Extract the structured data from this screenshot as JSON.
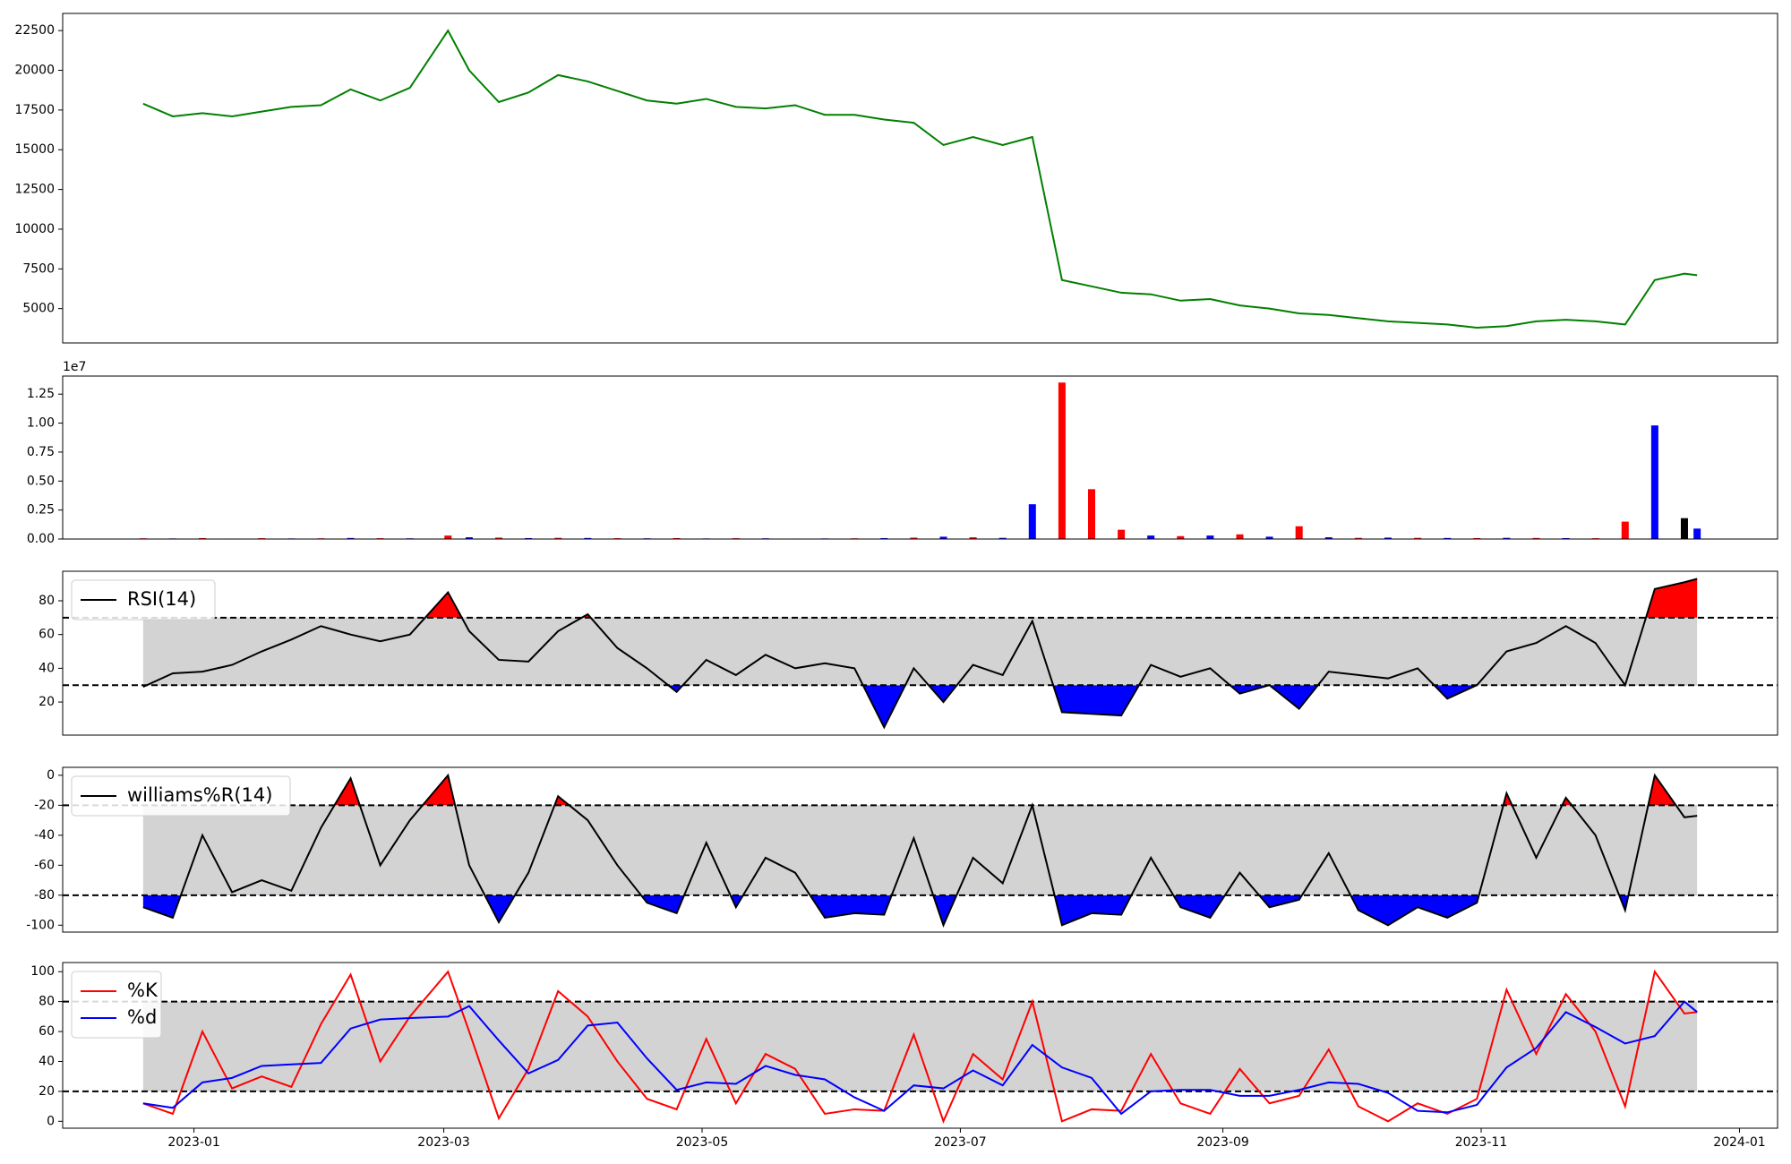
{
  "chart_data": [
    {
      "type": "line",
      "color": "#008000",
      "x": [
        "2022-12-20",
        "2022-12-27",
        "2023-01-03",
        "2023-01-10",
        "2023-01-17",
        "2023-01-24",
        "2023-01-31",
        "2023-02-07",
        "2023-02-14",
        "2023-02-21",
        "2023-03-02",
        "2023-03-07",
        "2023-03-14",
        "2023-03-21",
        "2023-03-28",
        "2023-04-04",
        "2023-04-11",
        "2023-04-18",
        "2023-04-25",
        "2023-05-02",
        "2023-05-09",
        "2023-05-16",
        "2023-05-23",
        "2023-05-30",
        "2023-06-06",
        "2023-06-13",
        "2023-06-20",
        "2023-06-27",
        "2023-07-04",
        "2023-07-11",
        "2023-07-18",
        "2023-07-25",
        "2023-08-01",
        "2023-08-08",
        "2023-08-15",
        "2023-08-22",
        "2023-08-29",
        "2023-09-05",
        "2023-09-12",
        "2023-09-19",
        "2023-09-26",
        "2023-10-03",
        "2023-10-10",
        "2023-10-17",
        "2023-10-24",
        "2023-10-31",
        "2023-11-07",
        "2023-11-14",
        "2023-11-21",
        "2023-11-28",
        "2023-12-05",
        "2023-12-12",
        "2023-12-19",
        "2023-12-22"
      ],
      "values": [
        17900,
        17100,
        17300,
        17100,
        17400,
        17700,
        17800,
        18800,
        18100,
        18900,
        22500,
        20000,
        18000,
        18600,
        19700,
        19300,
        18700,
        18100,
        17900,
        18200,
        17700,
        17600,
        17800,
        17200,
        17200,
        16900,
        16700,
        15300,
        15800,
        15300,
        15800,
        6800,
        6400,
        6000,
        5900,
        5500,
        5600,
        5200,
        5000,
        4700,
        4600,
        4400,
        4200,
        4100,
        4000,
        3800,
        3900,
        4200,
        4300,
        4200,
        4000,
        6800,
        7200,
        7100
      ],
      "xlim": [
        "2022-12-01",
        "2024-01-10"
      ],
      "ylim": [
        2840,
        23580
      ],
      "yticks": [
        5000,
        7500,
        10000,
        12500,
        15000,
        17500,
        20000,
        22500
      ]
    },
    {
      "type": "bar",
      "offset_label": "1e7",
      "x": [
        "2022-12-20",
        "2022-12-27",
        "2023-01-03",
        "2023-01-10",
        "2023-01-17",
        "2023-01-24",
        "2023-01-31",
        "2023-02-07",
        "2023-02-14",
        "2023-02-21",
        "2023-03-02",
        "2023-03-07",
        "2023-03-14",
        "2023-03-21",
        "2023-03-28",
        "2023-04-04",
        "2023-04-11",
        "2023-04-18",
        "2023-04-25",
        "2023-05-02",
        "2023-05-09",
        "2023-05-16",
        "2023-05-23",
        "2023-05-30",
        "2023-06-06",
        "2023-06-13",
        "2023-06-20",
        "2023-06-27",
        "2023-07-04",
        "2023-07-11",
        "2023-07-18",
        "2023-07-25",
        "2023-08-01",
        "2023-08-08",
        "2023-08-15",
        "2023-08-22",
        "2023-08-29",
        "2023-09-05",
        "2023-09-12",
        "2023-09-19",
        "2023-09-26",
        "2023-10-03",
        "2023-10-10",
        "2023-10-17",
        "2023-10-24",
        "2023-10-31",
        "2023-11-07",
        "2023-11-14",
        "2023-11-21",
        "2023-11-28",
        "2023-12-05",
        "2023-12-12",
        "2023-12-19",
        "2023-12-22"
      ],
      "values": [
        60000,
        50000,
        80000,
        40000,
        70000,
        50000,
        60000,
        90000,
        70000,
        60000,
        300000,
        150000,
        120000,
        80000,
        100000,
        90000,
        70000,
        60000,
        80000,
        50000,
        70000,
        60000,
        40000,
        50000,
        60000,
        80000,
        120000,
        200000,
        150000,
        100000,
        3000000,
        13500000,
        4300000,
        800000,
        300000,
        250000,
        300000,
        400000,
        200000,
        1100000,
        150000,
        100000,
        120000,
        100000,
        90000,
        80000,
        100000,
        90000,
        80000,
        70000,
        1500000,
        9800000,
        1800000,
        900000
      ],
      "colors": [
        "red",
        "blue",
        "red",
        "blue",
        "red",
        "blue",
        "red",
        "blue",
        "red",
        "blue",
        "red",
        "blue",
        "red",
        "blue",
        "red",
        "blue",
        "red",
        "blue",
        "red",
        "blue",
        "red",
        "blue",
        "red",
        "blue",
        "red",
        "blue",
        "red",
        "blue",
        "red",
        "blue",
        "blue",
        "red",
        "red",
        "red",
        "blue",
        "red",
        "blue",
        "red",
        "blue",
        "red",
        "blue",
        "red",
        "blue",
        "red",
        "blue",
        "red",
        "blue",
        "red",
        "blue",
        "red",
        "red",
        "blue",
        "black",
        "blue"
      ],
      "xlim": [
        "2022-12-01",
        "2024-01-10"
      ],
      "ylim": [
        0,
        14060000
      ],
      "yticks": [
        {
          "value": 0,
          "label": "0.00"
        },
        {
          "value": 2500000,
          "label": "0.25"
        },
        {
          "value": 5000000,
          "label": "0.50"
        },
        {
          "value": 7500000,
          "label": "0.75"
        },
        {
          "value": 10000000,
          "label": "1.00"
        },
        {
          "value": 12500000,
          "label": "1.25"
        }
      ]
    },
    {
      "type": "line",
      "legend": "upper left",
      "thresholds": [
        30,
        70
      ],
      "band_color": "#d3d3d3",
      "upper_fill": "red",
      "lower_fill": "blue",
      "x": [
        "2022-12-20",
        "2022-12-27",
        "2023-01-03",
        "2023-01-10",
        "2023-01-17",
        "2023-01-24",
        "2023-01-31",
        "2023-02-07",
        "2023-02-14",
        "2023-02-21",
        "2023-03-02",
        "2023-03-07",
        "2023-03-14",
        "2023-03-21",
        "2023-03-28",
        "2023-04-04",
        "2023-04-11",
        "2023-04-18",
        "2023-04-25",
        "2023-05-02",
        "2023-05-09",
        "2023-05-16",
        "2023-05-23",
        "2023-05-30",
        "2023-06-06",
        "2023-06-13",
        "2023-06-20",
        "2023-06-27",
        "2023-07-04",
        "2023-07-11",
        "2023-07-18",
        "2023-07-25",
        "2023-08-01",
        "2023-08-08",
        "2023-08-15",
        "2023-08-22",
        "2023-08-29",
        "2023-09-05",
        "2023-09-12",
        "2023-09-19",
        "2023-09-26",
        "2023-10-03",
        "2023-10-10",
        "2023-10-17",
        "2023-10-24",
        "2023-10-31",
        "2023-11-07",
        "2023-11-14",
        "2023-11-21",
        "2023-11-28",
        "2023-12-05",
        "2023-12-12",
        "2023-12-19",
        "2023-12-22"
      ],
      "series": [
        {
          "name": "RSI(14)",
          "color": "black",
          "values": [
            29,
            37,
            38,
            42,
            50,
            57,
            65,
            60,
            56,
            60,
            85,
            62,
            45,
            44,
            62,
            72,
            52,
            40,
            26,
            45,
            36,
            48,
            40,
            43,
            40,
            5,
            40,
            20,
            42,
            36,
            68,
            14,
            13,
            12,
            42,
            35,
            40,
            25,
            30,
            16,
            38,
            36,
            34,
            40,
            22,
            30,
            50,
            55,
            65,
            55,
            30,
            87,
            91,
            93
          ]
        }
      ],
      "xlim": [
        "2022-12-01",
        "2024-01-10"
      ],
      "ylim": [
        0.4,
        97.5
      ],
      "yticks": [
        20,
        40,
        60,
        80
      ]
    },
    {
      "type": "line",
      "legend": "upper left",
      "thresholds": [
        -80,
        -20
      ],
      "band_color": "#d3d3d3",
      "upper_fill": "red",
      "lower_fill": "blue",
      "x": [
        "2022-12-20",
        "2022-12-27",
        "2023-01-03",
        "2023-01-10",
        "2023-01-17",
        "2023-01-24",
        "2023-01-31",
        "2023-02-07",
        "2023-02-14",
        "2023-02-21",
        "2023-03-02",
        "2023-03-07",
        "2023-03-14",
        "2023-03-21",
        "2023-03-28",
        "2023-04-04",
        "2023-04-11",
        "2023-04-18",
        "2023-04-25",
        "2023-05-02",
        "2023-05-09",
        "2023-05-16",
        "2023-05-23",
        "2023-05-30",
        "2023-06-06",
        "2023-06-13",
        "2023-06-20",
        "2023-06-27",
        "2023-07-04",
        "2023-07-11",
        "2023-07-18",
        "2023-07-25",
        "2023-08-01",
        "2023-08-08",
        "2023-08-15",
        "2023-08-22",
        "2023-08-29",
        "2023-09-05",
        "2023-09-12",
        "2023-09-19",
        "2023-09-26",
        "2023-10-03",
        "2023-10-10",
        "2023-10-17",
        "2023-10-24",
        "2023-10-31",
        "2023-11-07",
        "2023-11-14",
        "2023-11-21",
        "2023-11-28",
        "2023-12-05",
        "2023-12-12",
        "2023-12-19",
        "2023-12-22"
      ],
      "series": [
        {
          "name": "williams%R(14)",
          "color": "black",
          "values": [
            -88,
            -95,
            -40,
            -78,
            -70,
            -77,
            -35,
            -2,
            -60,
            -30,
            0,
            -60,
            -98,
            -65,
            -14,
            -30,
            -60,
            -85,
            -92,
            -45,
            -88,
            -55,
            -65,
            -95,
            -92,
            -93,
            -42,
            -100,
            -55,
            -72,
            -20,
            -100,
            -92,
            -93,
            -55,
            -88,
            -95,
            -65,
            -88,
            -83,
            -52,
            -90,
            -100,
            -88,
            -95,
            -85,
            -12,
            -55,
            -15,
            -40,
            -90,
            0,
            -28,
            -27
          ]
        }
      ],
      "xlim": [
        "2022-12-01",
        "2024-01-10"
      ],
      "ylim": [
        -104.6,
        5.3
      ],
      "yticks": [
        -100,
        -80,
        -60,
        -40,
        -20,
        0
      ]
    },
    {
      "type": "line",
      "legend": "upper left",
      "thresholds": [
        20,
        80
      ],
      "band_color": "#d3d3d3",
      "x": [
        "2022-12-20",
        "2022-12-27",
        "2023-01-03",
        "2023-01-10",
        "2023-01-17",
        "2023-01-24",
        "2023-01-31",
        "2023-02-07",
        "2023-02-14",
        "2023-02-21",
        "2023-03-02",
        "2023-03-07",
        "2023-03-14",
        "2023-03-21",
        "2023-03-28",
        "2023-04-04",
        "2023-04-11",
        "2023-04-18",
        "2023-04-25",
        "2023-05-02",
        "2023-05-09",
        "2023-05-16",
        "2023-05-23",
        "2023-05-30",
        "2023-06-06",
        "2023-06-13",
        "2023-06-20",
        "2023-06-27",
        "2023-07-04",
        "2023-07-11",
        "2023-07-18",
        "2023-07-25",
        "2023-08-01",
        "2023-08-08",
        "2023-08-15",
        "2023-08-22",
        "2023-08-29",
        "2023-09-05",
        "2023-09-12",
        "2023-09-19",
        "2023-09-26",
        "2023-10-03",
        "2023-10-10",
        "2023-10-17",
        "2023-10-24",
        "2023-10-31",
        "2023-11-07",
        "2023-11-14",
        "2023-11-21",
        "2023-11-28",
        "2023-12-05",
        "2023-12-12",
        "2023-12-19",
        "2023-12-22"
      ],
      "series": [
        {
          "name": "%K",
          "color": "red",
          "values": [
            12,
            5,
            60,
            22,
            30,
            23,
            65,
            98,
            40,
            70,
            100,
            60,
            2,
            35,
            87,
            70,
            40,
            15,
            8,
            55,
            12,
            45,
            35,
            5,
            8,
            7,
            58,
            0,
            45,
            28,
            80,
            0,
            8,
            7,
            45,
            12,
            5,
            35,
            12,
            17,
            48,
            10,
            0,
            12,
            5,
            15,
            88,
            45,
            85,
            60,
            10,
            100,
            72,
            73
          ]
        },
        {
          "name": "%d",
          "color": "blue",
          "values": [
            12,
            9,
            26,
            29,
            37,
            38,
            39,
            62,
            68,
            69,
            70,
            77,
            54,
            32,
            41,
            64,
            66,
            42,
            21,
            26,
            25,
            37,
            31,
            28,
            16,
            7,
            24,
            22,
            34,
            24,
            51,
            36,
            29,
            5,
            20,
            21,
            21,
            17,
            17,
            21,
            26,
            25,
            19,
            7,
            6,
            11,
            36,
            49,
            73,
            63,
            52,
            57,
            80,
            73
          ]
        }
      ],
      "xlim": [
        "2022-12-01",
        "2024-01-10"
      ],
      "ylim": [
        -4.6,
        106.1
      ],
      "yticks": [
        0,
        20,
        40,
        60,
        80,
        100
      ],
      "xticks": [
        "2023-01",
        "2023-03",
        "2023-05",
        "2023-07",
        "2023-09",
        "2023-11",
        "2024-01"
      ]
    }
  ]
}
